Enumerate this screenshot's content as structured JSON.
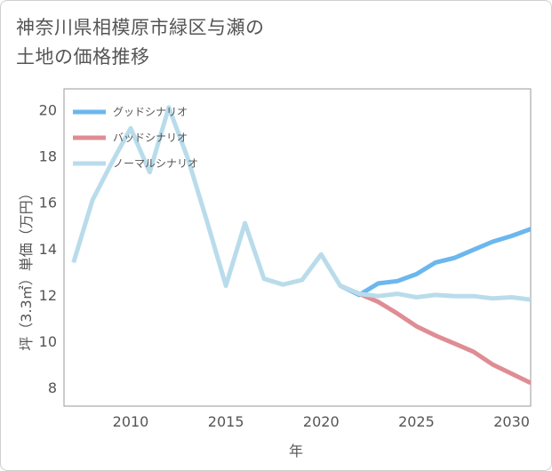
{
  "page": {
    "title": "神奈川県相模原市緑区与瀬の\n土地の価格推移"
  },
  "chart_data": {
    "type": "line",
    "title": "神奈川県相模原市緑区与瀬の土地の価格推移",
    "xlabel": "年",
    "ylabel": "坪（3.3㎡）単価（万円）",
    "xlim": [
      2006.5,
      2031
    ],
    "ylim": [
      7.2,
      20.9
    ],
    "x_ticks": [
      2010,
      2015,
      2020,
      2025,
      2030
    ],
    "y_ticks": [
      8,
      10,
      12,
      14,
      16,
      18,
      20
    ],
    "grid": false,
    "legend_position": "top-left",
    "series": [
      {
        "name": "グッドシナリオ",
        "color": "#6bb7ee",
        "x": [
          2021,
          2022,
          2023,
          2024,
          2025,
          2026,
          2027,
          2028,
          2029,
          2030,
          2031
        ],
        "values": [
          12.4,
          12.0,
          12.5,
          12.6,
          12.9,
          13.4,
          13.6,
          13.95,
          14.3,
          14.55,
          14.85
        ]
      },
      {
        "name": "バッドシナリオ",
        "color": "#df8d94",
        "x": [
          2021,
          2022,
          2023,
          2024,
          2025,
          2026,
          2027,
          2028,
          2029,
          2030,
          2031
        ],
        "values": [
          12.4,
          12.05,
          11.7,
          11.2,
          10.65,
          10.25,
          9.9,
          9.55,
          9.0,
          8.6,
          8.2
        ]
      },
      {
        "name": "ノーマルシナリオ",
        "color": "#b9dceb",
        "x": [
          2007,
          2008,
          2009,
          2010,
          2011,
          2012,
          2013,
          2014,
          2015,
          2016,
          2017,
          2018,
          2019,
          2020,
          2021,
          2022,
          2023,
          2024,
          2025,
          2026,
          2027,
          2028,
          2029,
          2030,
          2031
        ],
        "values": [
          13.4,
          16.1,
          17.7,
          19.2,
          17.3,
          20.1,
          17.9,
          15.2,
          12.4,
          15.1,
          12.7,
          12.45,
          12.65,
          13.75,
          12.4,
          12.05,
          11.95,
          12.05,
          11.9,
          12.0,
          11.95,
          11.95,
          11.85,
          11.9,
          11.8
        ]
      }
    ]
  }
}
